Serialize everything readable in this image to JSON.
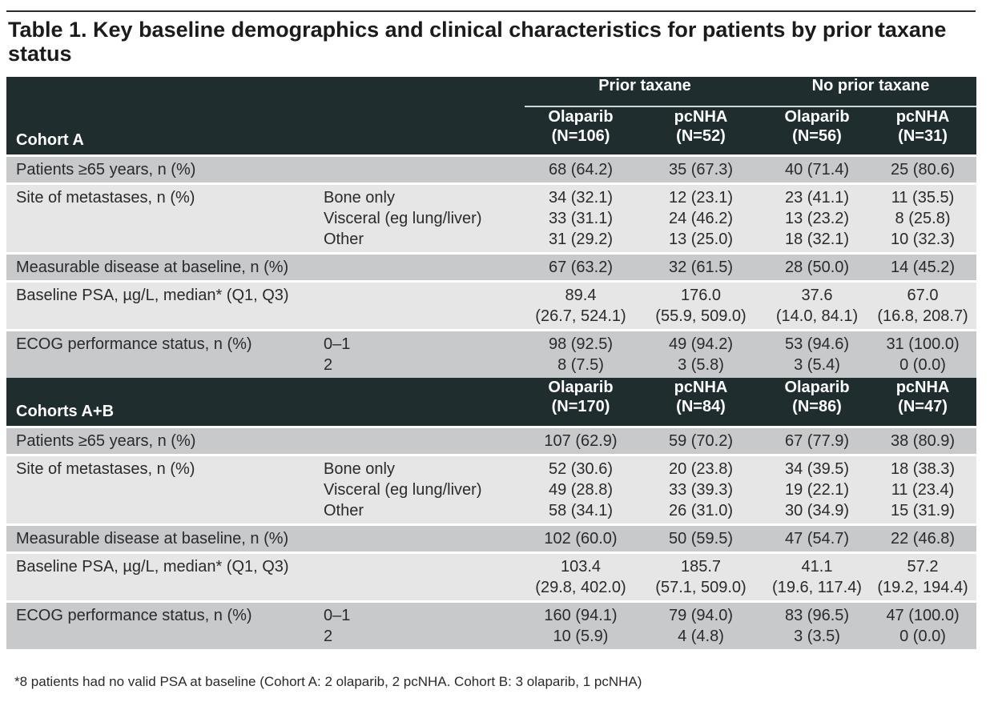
{
  "title": "Table 1. Key baseline demographics and clinical characteristics for patients by prior taxane status",
  "group_headers": [
    "Prior taxane",
    "No prior taxane"
  ],
  "sections": [
    {
      "cohort": "Cohort A",
      "columns": [
        [
          "Olaparib",
          "(N=106)"
        ],
        [
          "pcNHA",
          "(N=52)"
        ],
        [
          "Olaparib",
          "(N=56)"
        ],
        [
          "pcNHA",
          "(N=31)"
        ]
      ],
      "rows": [
        {
          "label": "Patients ≥65 years, n (%)",
          "sub": [
            ""
          ],
          "values": [
            [
              "68 (64.2)"
            ],
            [
              "35 (67.3)"
            ],
            [
              "40 (71.4)"
            ],
            [
              "25 (80.6)"
            ]
          ]
        },
        {
          "label": "Site of metastases, n (%)",
          "sub": [
            "Bone only",
            "Visceral (eg lung/liver)",
            "Other"
          ],
          "values": [
            [
              "34 (32.1)",
              "33 (31.1)",
              "31 (29.2)"
            ],
            [
              "12 (23.1)",
              "24 (46.2)",
              "13 (25.0)"
            ],
            [
              "23 (41.1)",
              "13 (23.2)",
              "18 (32.1)"
            ],
            [
              "11 (35.5)",
              "8 (25.8)",
              "10 (32.3)"
            ]
          ]
        },
        {
          "label": "Measurable disease at baseline, n (%)",
          "sub": [
            ""
          ],
          "values": [
            [
              "67 (63.2)"
            ],
            [
              "32 (61.5)"
            ],
            [
              "28 (50.0)"
            ],
            [
              "14 (45.2)"
            ]
          ]
        },
        {
          "label": "Baseline PSA, µg/L, median* (Q1, Q3)",
          "sub": [
            ""
          ],
          "values": [
            [
              "89.4",
              "(26.7, 524.1)"
            ],
            [
              "176.0",
              "(55.9, 509.0)"
            ],
            [
              "37.6",
              "(14.0, 84.1)"
            ],
            [
              "67.0",
              "(16.8, 208.7)"
            ]
          ]
        },
        {
          "label": "ECOG performance status, n (%)",
          "sub": [
            "0–1",
            "2"
          ],
          "values": [
            [
              "98 (92.5)",
              "8 (7.5)"
            ],
            [
              "49 (94.2)",
              "3 (5.8)"
            ],
            [
              "53 (94.6)",
              "3 (5.4)"
            ],
            [
              "31 (100.0)",
              "0 (0.0)"
            ]
          ]
        }
      ]
    },
    {
      "cohort": "Cohorts A+B",
      "columns": [
        [
          "Olaparib",
          "(N=170)"
        ],
        [
          "pcNHA",
          "(N=84)"
        ],
        [
          "Olaparib",
          "(N=86)"
        ],
        [
          "pcNHA",
          "(N=47)"
        ]
      ],
      "rows": [
        {
          "label": "Patients ≥65 years, n (%)",
          "sub": [
            ""
          ],
          "values": [
            [
              "107 (62.9)"
            ],
            [
              "59 (70.2)"
            ],
            [
              "67 (77.9)"
            ],
            [
              "38 (80.9)"
            ]
          ]
        },
        {
          "label": "Site of metastases, n (%)",
          "sub": [
            "Bone only",
            "Visceral (eg lung/liver)",
            "Other"
          ],
          "values": [
            [
              "52 (30.6)",
              "49 (28.8)",
              "58 (34.1)"
            ],
            [
              "20 (23.8)",
              "33 (39.3)",
              "26 (31.0)"
            ],
            [
              "34 (39.5)",
              "19 (22.1)",
              "30 (34.9)"
            ],
            [
              "18 (38.3)",
              "11 (23.4)",
              "15 (31.9)"
            ]
          ]
        },
        {
          "label": "Measurable disease at baseline, n (%)",
          "sub": [
            ""
          ],
          "values": [
            [
              "102 (60.0)"
            ],
            [
              "50 (59.5)"
            ],
            [
              "47 (54.7)"
            ],
            [
              "22 (46.8)"
            ]
          ]
        },
        {
          "label": "Baseline PSA, µg/L, median* (Q1, Q3)",
          "sub": [
            ""
          ],
          "values": [
            [
              "103.4",
              "(29.8, 402.0)"
            ],
            [
              "185.7",
              "(57.1, 509.0)"
            ],
            [
              "41.1",
              "(19.6, 117.4)"
            ],
            [
              "57.2",
              "(19.2, 194.4)"
            ]
          ]
        },
        {
          "label": "ECOG performance status, n (%)",
          "sub": [
            "0–1",
            "2"
          ],
          "values": [
            [
              "160 (94.1)",
              "10 (5.9)"
            ],
            [
              "79 (94.0)",
              "4 (4.8)"
            ],
            [
              "83 (96.5)",
              "3 (3.5)"
            ],
            [
              "47 (100.0)",
              "0 (0.0)"
            ]
          ]
        }
      ]
    }
  ],
  "footnote": "*8 patients had no valid PSA at baseline (Cohort A: 2 olaparib, 2 pcNHA. Cohort B: 3 olaparib, 1 pcNHA)"
}
